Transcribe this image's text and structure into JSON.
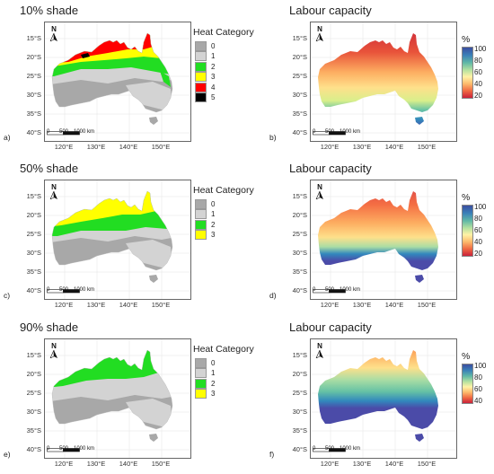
{
  "panels": [
    {
      "id": "a",
      "title": "10% shade",
      "letter": "a)",
      "type": "category",
      "legend_title": "Heat Category",
      "levels": [
        "0",
        "1",
        "2",
        "3",
        "4",
        "5"
      ]
    },
    {
      "id": "b",
      "title": "Labour capacity",
      "letter": "b)",
      "type": "continuous",
      "cbar_title": "%",
      "cbar_labels": [
        "100",
        "80",
        "60",
        "40",
        "20"
      ]
    },
    {
      "id": "c",
      "title": "50% shade",
      "letter": "c)",
      "type": "category",
      "legend_title": "Heat Category",
      "levels": [
        "0",
        "1",
        "2",
        "3"
      ]
    },
    {
      "id": "d",
      "title": "Labour capacity",
      "letter": "d)",
      "type": "continuous",
      "cbar_title": "%",
      "cbar_labels": [
        "100",
        "80",
        "60",
        "40",
        "20"
      ]
    },
    {
      "id": "e",
      "title": "90% shade",
      "letter": "e)",
      "type": "category",
      "legend_title": "Heat Category",
      "levels": [
        "0",
        "1",
        "2",
        "3"
      ]
    },
    {
      "id": "f",
      "title": "Labour capacity",
      "letter": "f)",
      "type": "continuous",
      "cbar_title": "%",
      "cbar_labels": [
        "100",
        "80",
        "60",
        "40"
      ]
    }
  ],
  "category_colors": {
    "0": "#a8a8a8",
    "1": "#d3d3d3",
    "2": "#22dd22",
    "3": "#ffff00",
    "4": "#ff0000",
    "5": "#000000"
  },
  "y_ticks": [
    "15°S",
    "20°S",
    "25°S",
    "30°S",
    "35°S",
    "40°S"
  ],
  "x_ticks": [
    "120°E",
    "130°E",
    "140°E",
    "150°E"
  ],
  "north_label": "N",
  "scalebar": {
    "labels": [
      "0",
      "500",
      "1000 km"
    ]
  }
}
